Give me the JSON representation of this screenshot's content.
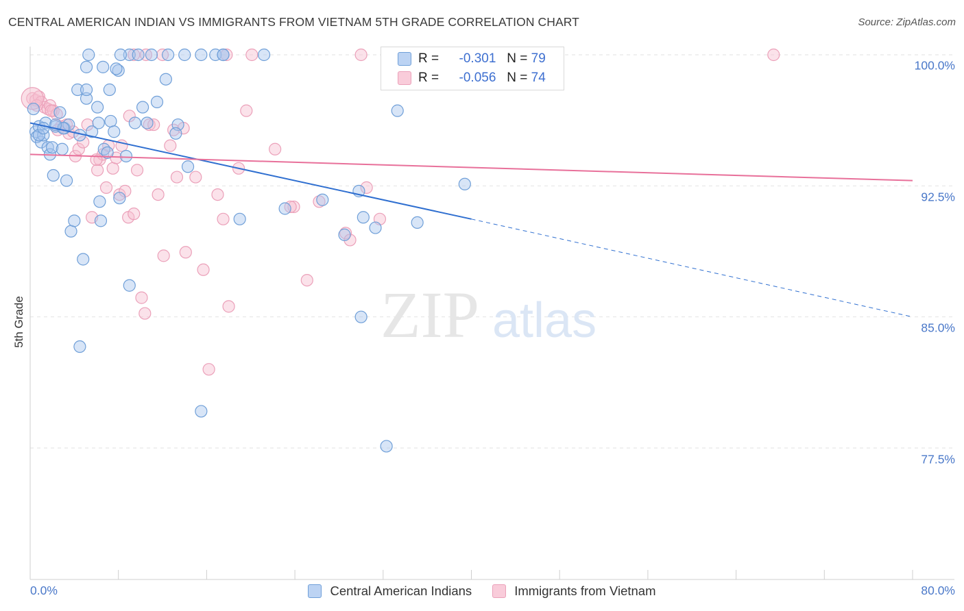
{
  "header": {
    "title": "CENTRAL AMERICAN INDIAN VS IMMIGRANTS FROM VIETNAM 5TH GRADE CORRELATION CHART",
    "source": "Source: ZipAtlas.com"
  },
  "legend_box": {
    "rows": [
      {
        "r_label": "R =",
        "r_value": "-0.301",
        "n_label": "N =",
        "n_value": "79"
      },
      {
        "r_label": "R =",
        "r_value": "-0.056",
        "n_label": "N =",
        "n_value": "74"
      }
    ]
  },
  "colors": {
    "blue_fill": "#a9c6ee",
    "blue_stroke": "#6f9fd8",
    "blue_line": "#2f6fd0",
    "pink_fill": "#f6bfd0",
    "pink_stroke": "#eba0b9",
    "pink_line": "#e8709a",
    "tick_text": "#4a78c9",
    "grid": "#e2e2e2"
  },
  "watermark": {
    "zip": "ZIP",
    "atlas": "atlas"
  },
  "chart_data": {
    "type": "scatter",
    "title": "CENTRAL AMERICAN INDIAN VS IMMIGRANTS FROM VIETNAM 5TH GRADE CORRELATION CHART",
    "xlabel": "",
    "ylabel": "5th Grade",
    "xlim": [
      0,
      80
    ],
    "ylim": [
      70,
      100.8
    ],
    "x_tick_labels": [
      "0.0%",
      "80.0%"
    ],
    "y_ticks": [
      77.5,
      85.0,
      92.5,
      100.0
    ],
    "y_tick_labels": [
      "77.5%",
      "85.0%",
      "92.5%",
      "100.0%"
    ],
    "grid": true,
    "legend_position": "bottom",
    "series": [
      {
        "name": "Central American Indians",
        "color": "#a9c6ee",
        "r": -0.301,
        "n": 79,
        "trend": {
          "x": [
            0,
            40
          ],
          "y": [
            96.1,
            90.6
          ],
          "dashed_to": [
            80,
            85.0
          ]
        },
        "points": [
          [
            0.3,
            96.9
          ],
          [
            0.5,
            95.6
          ],
          [
            0.6,
            95.3
          ],
          [
            0.8,
            95.9
          ],
          [
            1.0,
            95.0
          ],
          [
            1.2,
            95.4
          ],
          [
            1.4,
            96.1
          ],
          [
            1.6,
            94.7
          ],
          [
            1.8,
            94.3
          ],
          [
            2.0,
            94.7
          ],
          [
            2.1,
            93.1
          ],
          [
            2.3,
            95.9
          ],
          [
            2.7,
            96.7
          ],
          [
            2.9,
            94.6
          ],
          [
            3.1,
            95.8
          ],
          [
            3.3,
            92.8
          ],
          [
            3.5,
            96.0
          ],
          [
            3.7,
            89.9
          ],
          [
            4.0,
            90.5
          ],
          [
            4.5,
            95.4
          ],
          [
            4.8,
            88.3
          ],
          [
            5.1,
            97.5
          ],
          [
            5.6,
            95.6
          ],
          [
            6.1,
            97.0
          ],
          [
            6.2,
            96.1
          ],
          [
            6.3,
            91.6
          ],
          [
            6.4,
            90.5
          ],
          [
            6.7,
            94.6
          ],
          [
            7.0,
            94.4
          ],
          [
            7.2,
            98.0
          ],
          [
            7.3,
            96.2
          ],
          [
            7.6,
            95.6
          ],
          [
            8.0,
            99.1
          ],
          [
            8.1,
            91.8
          ],
          [
            8.7,
            94.2
          ],
          [
            9.0,
            86.8
          ],
          [
            9.5,
            96.1
          ],
          [
            10.2,
            97.0
          ],
          [
            10.6,
            96.1
          ],
          [
            11.5,
            97.3
          ],
          [
            12.3,
            98.6
          ],
          [
            13.4,
            96.0
          ],
          [
            14.3,
            93.6
          ],
          [
            15.5,
            79.6
          ],
          [
            16.8,
            100.0
          ],
          [
            17.5,
            100.0
          ],
          [
            19.0,
            90.6
          ],
          [
            21.2,
            100.0
          ],
          [
            23.1,
            91.2
          ],
          [
            26.5,
            91.7
          ],
          [
            28.5,
            89.7
          ],
          [
            29.8,
            92.2
          ],
          [
            30.0,
            85.0
          ],
          [
            30.2,
            90.7
          ],
          [
            31.3,
            90.1
          ],
          [
            32.3,
            77.6
          ],
          [
            33.3,
            96.8
          ],
          [
            35.1,
            90.4
          ],
          [
            39.4,
            92.6
          ],
          [
            4.3,
            98.0
          ],
          [
            5.1,
            98.0
          ],
          [
            3.0,
            95.8
          ],
          [
            9.0,
            100.0
          ],
          [
            11.0,
            100.0
          ],
          [
            12.5,
            100.0
          ],
          [
            14.0,
            100.0
          ],
          [
            15.5,
            100.0
          ],
          [
            17.5,
            100.0
          ],
          [
            9.8,
            100.0
          ],
          [
            8.2,
            100.0
          ],
          [
            6.6,
            99.3
          ],
          [
            5.1,
            99.3
          ],
          [
            5.3,
            100.0
          ],
          [
            4.5,
            83.3
          ],
          [
            7.8,
            99.2
          ],
          [
            13.2,
            95.5
          ],
          [
            2.3,
            96.0
          ],
          [
            0.8,
            95.4
          ],
          [
            1.2,
            95.8
          ]
        ]
      },
      {
        "name": "Immigrants from Vietnam",
        "color": "#f6bfd0",
        "r": -0.056,
        "n": 74,
        "trend": {
          "x": [
            0,
            80
          ],
          "y": [
            94.3,
            92.8
          ]
        },
        "points": [
          [
            0.2,
            97.5
          ],
          [
            0.5,
            97.4
          ],
          [
            0.8,
            97.6
          ],
          [
            1.0,
            97.3
          ],
          [
            1.3,
            97.0
          ],
          [
            1.6,
            96.9
          ],
          [
            1.8,
            97.1
          ],
          [
            2.1,
            96.8
          ],
          [
            2.4,
            96.6
          ],
          [
            2.8,
            95.9
          ],
          [
            3.3,
            96.0
          ],
          [
            3.5,
            95.5
          ],
          [
            3.9,
            95.6
          ],
          [
            4.1,
            94.2
          ],
          [
            4.4,
            94.6
          ],
          [
            4.8,
            95.0
          ],
          [
            5.2,
            96.0
          ],
          [
            5.6,
            90.7
          ],
          [
            6.1,
            93.4
          ],
          [
            6.3,
            94.0
          ],
          [
            6.6,
            94.3
          ],
          [
            6.9,
            92.4
          ],
          [
            7.1,
            94.8
          ],
          [
            7.5,
            93.5
          ],
          [
            7.8,
            94.1
          ],
          [
            8.1,
            92.0
          ],
          [
            8.3,
            94.8
          ],
          [
            8.6,
            92.2
          ],
          [
            8.9,
            90.7
          ],
          [
            9.0,
            96.5
          ],
          [
            9.4,
            90.9
          ],
          [
            9.7,
            93.4
          ],
          [
            10.1,
            86.1
          ],
          [
            10.4,
            85.2
          ],
          [
            10.8,
            96.0
          ],
          [
            11.2,
            96.0
          ],
          [
            11.6,
            92.0
          ],
          [
            12.1,
            88.5
          ],
          [
            13.0,
            95.7
          ],
          [
            13.3,
            93.0
          ],
          [
            13.9,
            95.8
          ],
          [
            14.1,
            88.7
          ],
          [
            15.7,
            87.7
          ],
          [
            16.2,
            82.0
          ],
          [
            17.0,
            92.0
          ],
          [
            17.5,
            90.6
          ],
          [
            18.0,
            85.6
          ],
          [
            18.9,
            93.5
          ],
          [
            19.6,
            96.8
          ],
          [
            20.1,
            100.0
          ],
          [
            22.2,
            94.6
          ],
          [
            23.9,
            91.3
          ],
          [
            25.1,
            87.1
          ],
          [
            26.2,
            91.6
          ],
          [
            28.6,
            89.8
          ],
          [
            29.0,
            89.4
          ],
          [
            30.5,
            92.4
          ],
          [
            31.7,
            90.6
          ],
          [
            35.3,
            100.0
          ],
          [
            41.1,
            100.0
          ],
          [
            43.6,
            100.0
          ],
          [
            67.4,
            100.0
          ],
          [
            12.7,
            94.8
          ],
          [
            12.0,
            100.0
          ],
          [
            10.5,
            100.0
          ],
          [
            15.0,
            93.0
          ],
          [
            17.8,
            100.0
          ],
          [
            2.5,
            95.7
          ],
          [
            1.9,
            96.8
          ],
          [
            0.6,
            97.1
          ],
          [
            23.6,
            91.3
          ],
          [
            30.0,
            100.0
          ],
          [
            9.4,
            100.0
          ],
          [
            6.0,
            94.0
          ]
        ]
      }
    ]
  },
  "bottom_legend": [
    {
      "label": "Central American Indians"
    },
    {
      "label": "Immigrants from Vietnam"
    }
  ]
}
